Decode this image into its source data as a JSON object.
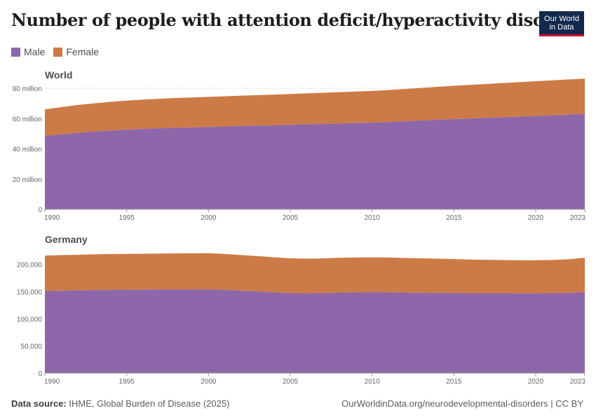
{
  "title": "Number of people with attention deficit/hyperactivity disorder",
  "logo": {
    "line1": "Our World",
    "line2": "in Data"
  },
  "legend": [
    {
      "label": "Male",
      "color": "#8d67a9"
    },
    {
      "label": "Female",
      "color": "#cd7b46"
    }
  ],
  "colors": {
    "male": "#8d67a9",
    "female": "#cd7b46",
    "grid": "#dddddd",
    "axis": "#999999"
  },
  "footer": {
    "source_label": "Data source:",
    "source": "IHME, Global Burden of Disease (2025)",
    "link": "OurWorldinData.org/neurodevelopmental-disorders | CC BY"
  },
  "chart_data": [
    {
      "type": "area",
      "stacked": true,
      "title": "World",
      "x": [
        1990,
        1991,
        1992,
        1993,
        1994,
        1995,
        1996,
        1997,
        1998,
        1999,
        2000,
        2001,
        2002,
        2003,
        2004,
        2005,
        2006,
        2007,
        2008,
        2009,
        2010,
        2011,
        2012,
        2013,
        2014,
        2015,
        2016,
        2017,
        2018,
        2019,
        2020,
        2021,
        2022,
        2023
      ],
      "series": [
        {
          "name": "Male",
          "values": [
            48.5,
            49.5,
            50.5,
            51.3,
            52.0,
            52.6,
            53.1,
            53.5,
            53.8,
            54.1,
            54.4,
            54.7,
            55.0,
            55.2,
            55.5,
            55.8,
            56.1,
            56.4,
            56.7,
            57.0,
            57.3,
            57.7,
            58.2,
            58.7,
            59.2,
            59.6,
            60.0,
            60.4,
            60.8,
            61.2,
            61.6,
            62.1,
            62.6,
            63.0
          ]
        },
        {
          "name": "Female",
          "values": [
            17.5,
            18.0,
            18.4,
            18.7,
            19.0,
            19.2,
            19.4,
            19.5,
            19.7,
            19.8,
            19.9,
            20.0,
            20.1,
            20.2,
            20.3,
            20.4,
            20.5,
            20.6,
            20.7,
            20.8,
            20.9,
            21.1,
            21.3,
            21.5,
            21.7,
            22.0,
            22.2,
            22.4,
            22.6,
            22.8,
            23.0,
            23.1,
            23.2,
            23.3
          ]
        }
      ],
      "y_ticks": [
        0,
        20,
        40,
        60,
        80
      ],
      "y_tick_labels": [
        "0",
        "20 million",
        "40 million",
        "60 million",
        "80 million"
      ],
      "ylim": [
        0,
        80
      ],
      "x_ticks": [
        1990,
        1995,
        2000,
        2005,
        2010,
        2015,
        2020,
        2023
      ]
    },
    {
      "type": "area",
      "stacked": true,
      "title": "Germany",
      "x": [
        1990,
        1991,
        1992,
        1993,
        1994,
        1995,
        1996,
        1997,
        1998,
        1999,
        2000,
        2001,
        2002,
        2003,
        2004,
        2005,
        2006,
        2007,
        2008,
        2009,
        2010,
        2011,
        2012,
        2013,
        2014,
        2015,
        2016,
        2017,
        2018,
        2019,
        2020,
        2021,
        2022,
        2023
      ],
      "series": [
        {
          "name": "Male",
          "values": [
            151000,
            151500,
            152000,
            152500,
            153000,
            153200,
            153400,
            153600,
            153800,
            153900,
            154000,
            153000,
            151500,
            150000,
            148500,
            147000,
            146500,
            147000,
            148000,
            148500,
            148800,
            148500,
            148000,
            147500,
            147200,
            147000,
            146800,
            146700,
            146600,
            146500,
            146500,
            146800,
            147500,
            148500
          ]
        },
        {
          "name": "Female",
          "values": [
            65000,
            65300,
            65500,
            65700,
            65800,
            65900,
            66000,
            66100,
            66200,
            66300,
            66300,
            66000,
            65500,
            65000,
            64500,
            64000,
            63800,
            63800,
            63900,
            64000,
            64000,
            63900,
            63700,
            63500,
            63200,
            62500,
            62000,
            61500,
            61200,
            61000,
            61000,
            61200,
            61800,
            63500
          ]
        }
      ],
      "y_ticks": [
        0,
        50000,
        100000,
        150000,
        200000
      ],
      "y_tick_labels": [
        "0",
        "50,000",
        "100,000",
        "150,000",
        "200,000"
      ],
      "ylim": [
        0,
        220000
      ],
      "x_ticks": [
        1990,
        1995,
        2000,
        2005,
        2010,
        2015,
        2020,
        2023
      ]
    }
  ]
}
